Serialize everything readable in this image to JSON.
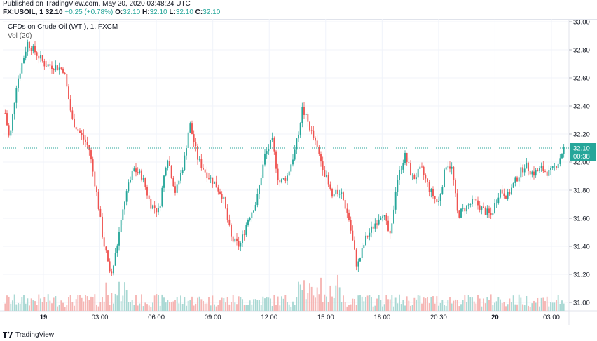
{
  "header": {
    "published": "Published on TradingView.com, May 20, 2020 03:48:24 UTC",
    "symbol": "FX:USOIL, 1",
    "last": "32.10",
    "change": "+0.25 (+0.78%)",
    "o_label": "O:",
    "o_value": "32.10",
    "h_label": "H:",
    "h_value": "32.10",
    "l_label": "L:",
    "l_value": "32.10",
    "c_label": "C:",
    "c_value": "32.10"
  },
  "legend": {
    "title": "CFDs on Crude Oil (WTI), 1, FXCM",
    "volume": "Vol (20)"
  },
  "footer": {
    "brand": "TradingView"
  },
  "colors": {
    "up": "#26a69a",
    "down": "#ef5350",
    "vol_up": "#a8d8d3",
    "vol_down": "#f5b5b3",
    "grid": "#f0f3fa",
    "last_price_bg": "#26a69a",
    "countdown_bg": "#26a69a"
  },
  "chart_data": {
    "type": "candlestick",
    "y_axis": {
      "ticks": [
        "33.00",
        "32.80",
        "32.60",
        "32.40",
        "32.20",
        "32.00",
        "31.80",
        "31.60",
        "31.40",
        "31.20",
        "31.00"
      ],
      "range": [
        30.94,
        33.02
      ]
    },
    "x_axis": {
      "ticks": [
        "19",
        "03:00",
        "06:00",
        "09:00",
        "12:00",
        "15:00",
        "18:00",
        "20:30",
        "20",
        "03:00"
      ]
    },
    "last_price": "32.10",
    "countdown": "00:38",
    "anchors": [
      {
        "t": 0.0,
        "p": 32.35
      },
      {
        "t": 0.008,
        "p": 32.15
      },
      {
        "t": 0.02,
        "p": 32.55
      },
      {
        "t": 0.04,
        "p": 32.85
      },
      {
        "t": 0.055,
        "p": 32.78
      },
      {
        "t": 0.07,
        "p": 32.7
      },
      {
        "t": 0.09,
        "p": 32.68
      },
      {
        "t": 0.105,
        "p": 32.66
      },
      {
        "t": 0.12,
        "p": 32.3
      },
      {
        "t": 0.135,
        "p": 32.2
      },
      {
        "t": 0.15,
        "p": 32.1
      },
      {
        "t": 0.165,
        "p": 31.75
      },
      {
        "t": 0.175,
        "p": 31.45
      },
      {
        "t": 0.19,
        "p": 31.18
      },
      {
        "t": 0.2,
        "p": 31.4
      },
      {
        "t": 0.215,
        "p": 31.75
      },
      {
        "t": 0.23,
        "p": 31.95
      },
      {
        "t": 0.245,
        "p": 31.9
      },
      {
        "t": 0.26,
        "p": 31.7
      },
      {
        "t": 0.275,
        "p": 31.65
      },
      {
        "t": 0.29,
        "p": 32.05
      },
      {
        "t": 0.305,
        "p": 31.78
      },
      {
        "t": 0.32,
        "p": 32.0
      },
      {
        "t": 0.33,
        "p": 32.28
      },
      {
        "t": 0.345,
        "p": 32.02
      },
      {
        "t": 0.36,
        "p": 31.92
      },
      {
        "t": 0.375,
        "p": 31.85
      },
      {
        "t": 0.39,
        "p": 31.75
      },
      {
        "t": 0.405,
        "p": 31.45
      },
      {
        "t": 0.42,
        "p": 31.4
      },
      {
        "t": 0.435,
        "p": 31.6
      },
      {
        "t": 0.45,
        "p": 31.72
      },
      {
        "t": 0.465,
        "p": 32.05
      },
      {
        "t": 0.478,
        "p": 32.15
      },
      {
        "t": 0.49,
        "p": 31.85
      },
      {
        "t": 0.505,
        "p": 31.9
      },
      {
        "t": 0.52,
        "p": 32.1
      },
      {
        "t": 0.532,
        "p": 32.38
      },
      {
        "t": 0.545,
        "p": 32.25
      },
      {
        "t": 0.558,
        "p": 32.1
      },
      {
        "t": 0.57,
        "p": 31.95
      },
      {
        "t": 0.585,
        "p": 31.75
      },
      {
        "t": 0.6,
        "p": 31.8
      },
      {
        "t": 0.615,
        "p": 31.6
      },
      {
        "t": 0.63,
        "p": 31.25
      },
      {
        "t": 0.645,
        "p": 31.45
      },
      {
        "t": 0.66,
        "p": 31.55
      },
      {
        "t": 0.675,
        "p": 31.65
      },
      {
        "t": 0.69,
        "p": 31.45
      },
      {
        "t": 0.7,
        "p": 31.85
      },
      {
        "t": 0.715,
        "p": 32.05
      },
      {
        "t": 0.73,
        "p": 31.88
      },
      {
        "t": 0.745,
        "p": 31.95
      },
      {
        "t": 0.76,
        "p": 31.8
      },
      {
        "t": 0.775,
        "p": 31.7
      },
      {
        "t": 0.79,
        "p": 32.0
      },
      {
        "t": 0.8,
        "p": 31.95
      },
      {
        "t": 0.81,
        "p": 31.62
      },
      {
        "t": 0.825,
        "p": 31.68
      },
      {
        "t": 0.84,
        "p": 31.72
      },
      {
        "t": 0.855,
        "p": 31.66
      },
      {
        "t": 0.87,
        "p": 31.62
      },
      {
        "t": 0.885,
        "p": 31.8
      },
      {
        "t": 0.9,
        "p": 31.76
      },
      {
        "t": 0.915,
        "p": 31.88
      },
      {
        "t": 0.93,
        "p": 31.98
      },
      {
        "t": 0.945,
        "p": 31.92
      },
      {
        "t": 0.96,
        "p": 31.95
      },
      {
        "t": 0.975,
        "p": 31.92
      },
      {
        "t": 0.99,
        "p": 32.0
      },
      {
        "t": 1.0,
        "p": 32.1
      }
    ]
  }
}
